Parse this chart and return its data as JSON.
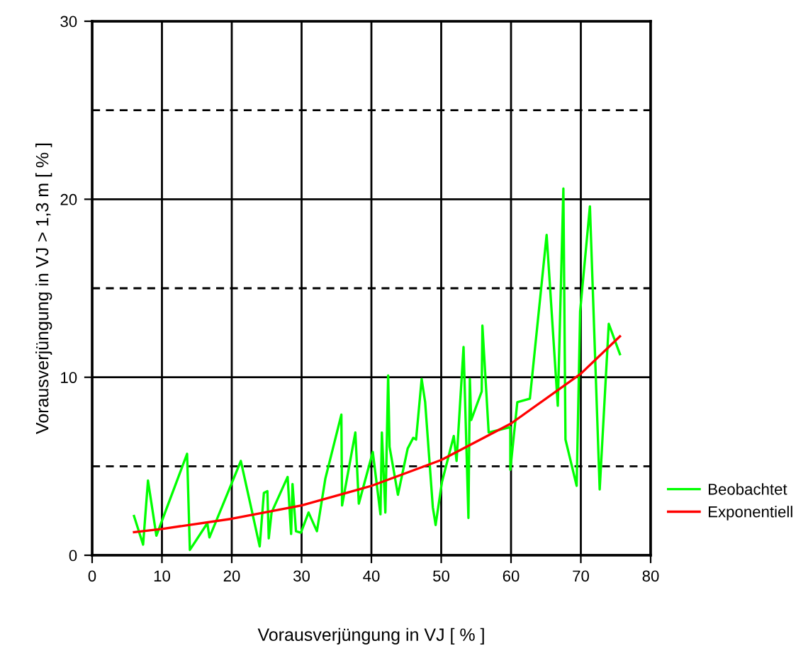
{
  "chart_data": {
    "type": "line",
    "xlabel": "Vorausverjüngung in VJ [ % ]",
    "ylabel": "Vorausverjüngung in VJ > 1,3 m [ % ]",
    "xlim": [
      0,
      80
    ],
    "xticks": [
      0,
      10,
      20,
      30,
      40,
      50,
      60,
      70,
      80
    ],
    "ylim": [
      0,
      30
    ],
    "yticks": [
      0,
      10,
      20,
      30
    ],
    "grid": true,
    "legend": "right",
    "marker": "none",
    "ref_lines": [
      {
        "axis": "y",
        "value": 5,
        "color": "#000000",
        "line_style": "dashed"
      },
      {
        "axis": "y",
        "value": 15,
        "color": "#000000",
        "line_style": "dashed"
      },
      {
        "axis": "y",
        "value": 25,
        "color": "#000000",
        "line_style": "dashed"
      }
    ],
    "series": [
      {
        "name": "Beobachtet",
        "color": "#00ff00",
        "x": [
          6,
          7.3,
          8,
          9.2,
          13.6,
          14,
          16.5,
          16.8,
          21.3,
          24,
          24.6,
          25.1,
          25.3,
          25.7,
          28,
          28.5,
          28.7,
          29.2,
          29.9,
          31,
          32.2,
          33.4,
          35.7,
          35.8,
          37.7,
          38.2,
          40.2,
          41.3,
          41.5,
          42,
          42.4,
          42.6,
          43.8,
          45.2,
          46,
          46.4,
          47.2,
          47.7,
          48.8,
          49.2,
          50.1,
          51.8,
          52.2,
          53.2,
          53.9,
          54.1,
          54.3,
          55.8,
          55.9,
          56.8,
          59.9,
          59.9,
          60.9,
          62.7,
          65.1,
          66.7,
          67.5,
          67.8,
          69.4,
          69.9,
          71.3,
          72.7,
          74,
          75.6
        ],
        "values": [
          2.2,
          0.6,
          4.2,
          1.1,
          5.7,
          0.3,
          1.8,
          1,
          5.3,
          0.5,
          3.5,
          3.6,
          0.95,
          2.4,
          4.4,
          1.2,
          4,
          1.35,
          1.27,
          2.4,
          1.35,
          4.3,
          7.9,
          2.8,
          6.9,
          2.9,
          5.8,
          2.3,
          6.9,
          2.4,
          10.1,
          6.1,
          3.4,
          6,
          6.6,
          6.5,
          9.9,
          8.6,
          2.7,
          1.7,
          4.1,
          6.7,
          5.3,
          11.7,
          2.1,
          9.9,
          7.6,
          9.2,
          12.9,
          6.9,
          7.2,
          4.8,
          8.6,
          8.8,
          18,
          8.4,
          20.6,
          6.5,
          3.9,
          13.7,
          19.6,
          3.7,
          13,
          11.3
        ]
      },
      {
        "name": "Exponentiell",
        "color": "#ff0000",
        "x": [
          6,
          10,
          20,
          30,
          40,
          50,
          60,
          70,
          75.6
        ],
        "values": [
          1.3,
          1.48,
          2.05,
          2.8,
          3.9,
          5.35,
          7.4,
          10.2,
          12.3
        ]
      }
    ]
  }
}
